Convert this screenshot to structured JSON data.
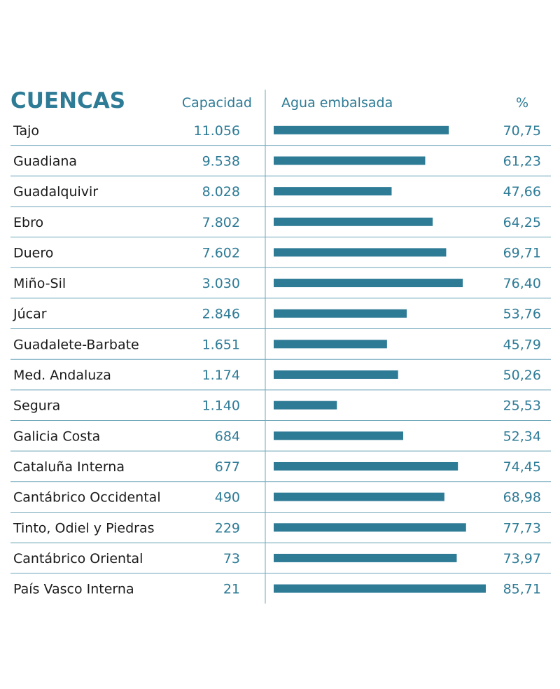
{
  "colors": {
    "accent": "#2e7b96",
    "text": "#1a1a1a",
    "rule": "#6fa6ba",
    "bar": "#2e7b96"
  },
  "chart_data": {
    "type": "bar",
    "title": "CUENCAS",
    "columns": {
      "capacity": "Capacidad",
      "water": "Agua embalsada",
      "percent": "%"
    },
    "xlim": [
      0,
      100
    ],
    "categories": [
      "Tajo",
      "Guadiana",
      "Guadalquivir",
      "Ebro",
      "Duero",
      "Miño-Sil",
      "Júcar",
      "Guadalete-Barbate",
      "Med. Andaluza",
      "Segura",
      "Galicia Costa",
      "Cataluña Interna",
      "Cantábrico Occidental",
      "Tinto, Odiel y Piedras",
      "Cantábrico Oriental",
      "País Vasco Interna"
    ],
    "capacity": [
      "11.056",
      "9.538",
      "8.028",
      "7.802",
      "7.602",
      "3.030",
      "2.846",
      "1.651",
      "1.174",
      "1.140",
      "684",
      "677",
      "490",
      "229",
      "73",
      "21"
    ],
    "percent_labels": [
      "70,75",
      "61,23",
      "47,66",
      "64,25",
      "69,71",
      "76,40",
      "53,76",
      "45,79",
      "50,26",
      "25,53",
      "52,34",
      "74,45",
      "68,98",
      "77,73",
      "73,97",
      "85,71"
    ],
    "values": [
      70.75,
      61.23,
      47.66,
      64.25,
      69.71,
      76.4,
      53.76,
      45.79,
      50.26,
      25.53,
      52.34,
      74.45,
      68.98,
      77.73,
      73.97,
      85.71
    ]
  }
}
